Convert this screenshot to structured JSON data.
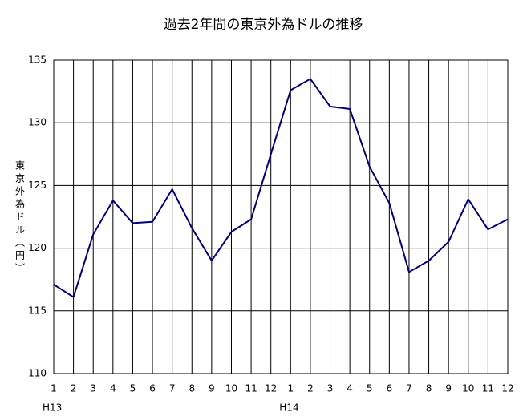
{
  "chart_data": {
    "type": "line",
    "title": "過去2年間の東京外為ドルの推移",
    "y_label": "東京外為ドル（円）",
    "categories": [
      "1",
      "2",
      "3",
      "4",
      "5",
      "6",
      "7",
      "8",
      "9",
      "10",
      "11",
      "12",
      "1",
      "2",
      "3",
      "4",
      "5",
      "6",
      "7",
      "8",
      "9",
      "10",
      "11",
      "12"
    ],
    "x_groups": [
      "H13",
      "H14"
    ],
    "values": [
      117.1,
      116.1,
      121.1,
      123.8,
      122.0,
      122.1,
      124.7,
      121.6,
      119.0,
      121.3,
      122.3,
      127.5,
      132.6,
      133.5,
      131.3,
      131.1,
      126.5,
      123.6,
      118.1,
      119.0,
      120.5,
      123.9,
      121.5,
      122.3
    ],
    "color": "#000080",
    "ylim": [
      110,
      135
    ],
    "yticks": [
      110,
      115,
      120,
      125,
      130,
      135
    ],
    "grid": true
  }
}
